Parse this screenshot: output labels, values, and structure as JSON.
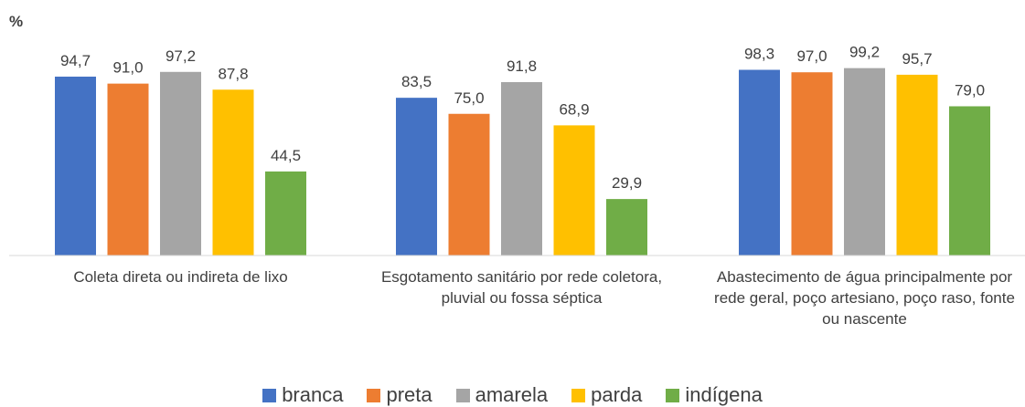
{
  "chart_data": {
    "type": "bar",
    "ylabel": "%",
    "categories": [
      "Coleta direta ou indireta de lixo",
      "Esgotamento sanitário por rede coletora, pluvial ou fossa séptica",
      "Abastecimento de água principalmente por rede geral, poço artesiano, poço raso, fonte ou nascente"
    ],
    "series": [
      {
        "name": "branca",
        "color": "#4472c4",
        "values": [
          94.7,
          83.5,
          98.3
        ],
        "value_labels": [
          "94,7",
          "83,5",
          "98,3"
        ]
      },
      {
        "name": "preta",
        "color": "#ed7d31",
        "values": [
          91.0,
          75.0,
          97.0
        ],
        "value_labels": [
          "91,0",
          "75,0",
          "97,0"
        ]
      },
      {
        "name": "amarela",
        "color": "#a5a5a5",
        "values": [
          97.2,
          91.8,
          99.2
        ],
        "value_labels": [
          "97,2",
          "91,8",
          "99,2"
        ]
      },
      {
        "name": "parda",
        "color": "#ffc000",
        "values": [
          87.8,
          68.9,
          95.7
        ],
        "value_labels": [
          "87,8",
          "68,9",
          "95,7"
        ]
      },
      {
        "name": "indígena",
        "color": "#70ad47",
        "values": [
          44.5,
          29.9,
          79.0
        ],
        "value_labels": [
          "44,5",
          "29,9",
          "79,0"
        ]
      }
    ],
    "ylim": [
      0,
      100
    ],
    "legend": "bottom"
  }
}
